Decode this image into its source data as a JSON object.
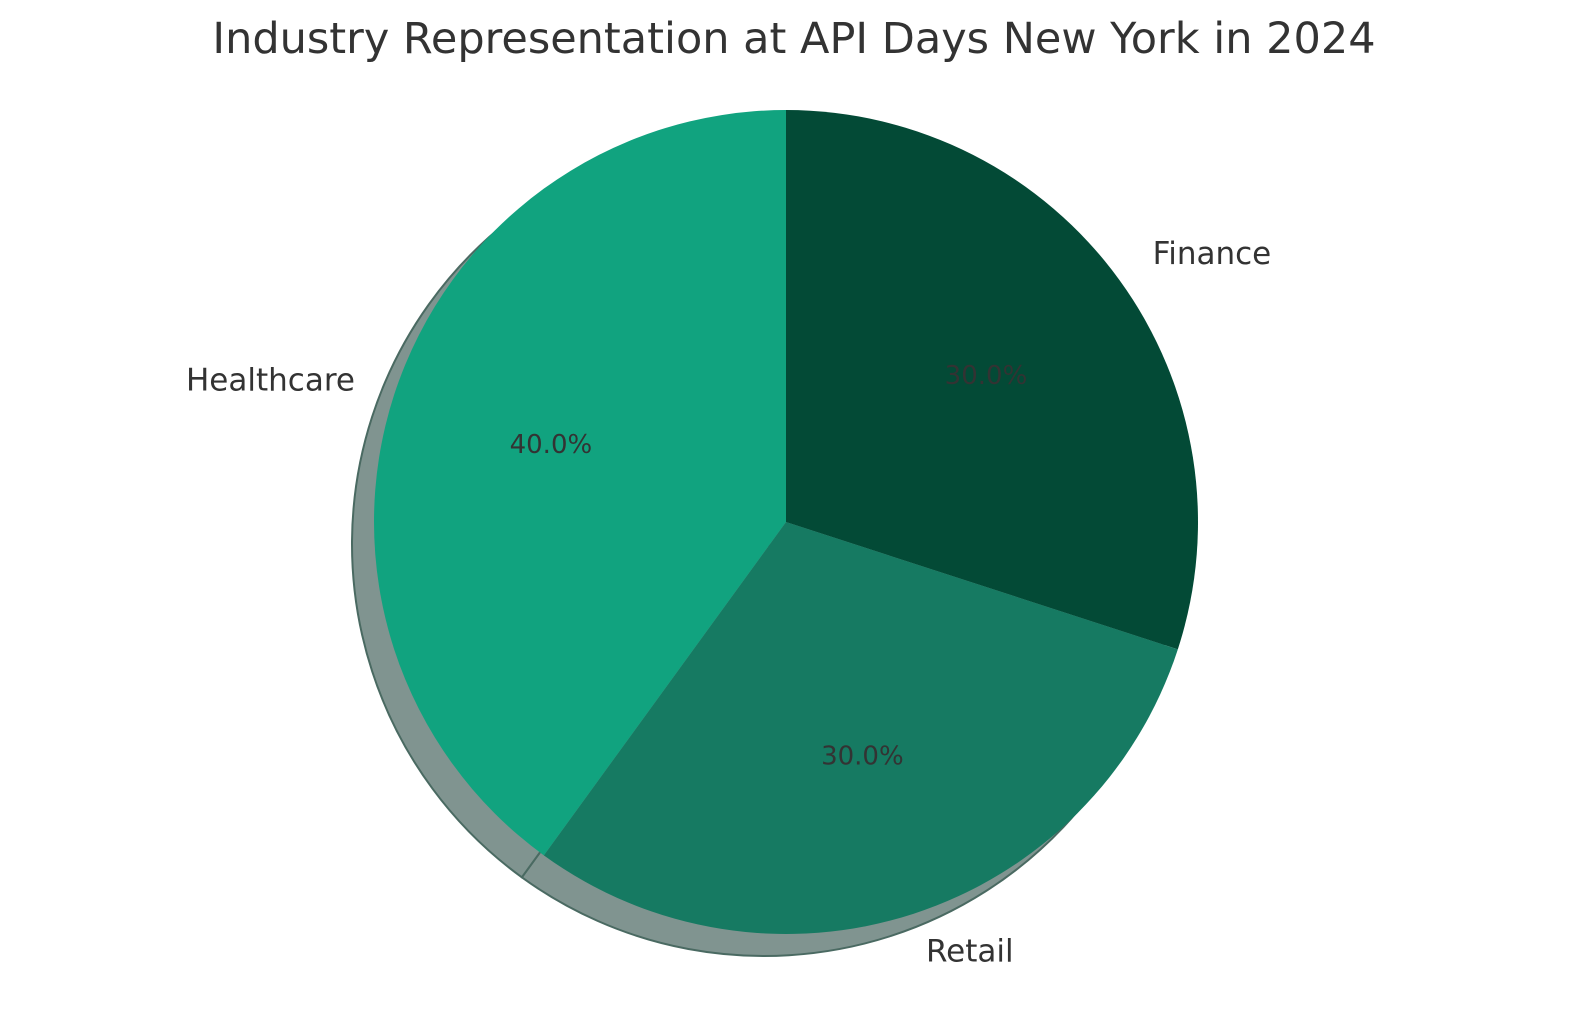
{
  "chart_data": {
    "type": "pie",
    "title": "Industry Representation at API Days New York in 2024",
    "categories": [
      "Finance",
      "Retail",
      "Healthcare"
    ],
    "values": [
      30,
      30,
      40
    ],
    "percent_labels": [
      "30.0%",
      "30.0%",
      "40.0%"
    ],
    "colors": [
      "#034a36",
      "#167a62",
      "#11a37f"
    ],
    "shadow_color": "#809490",
    "start_angle_deg": 90,
    "direction": "clockwise",
    "shadow": true
  }
}
